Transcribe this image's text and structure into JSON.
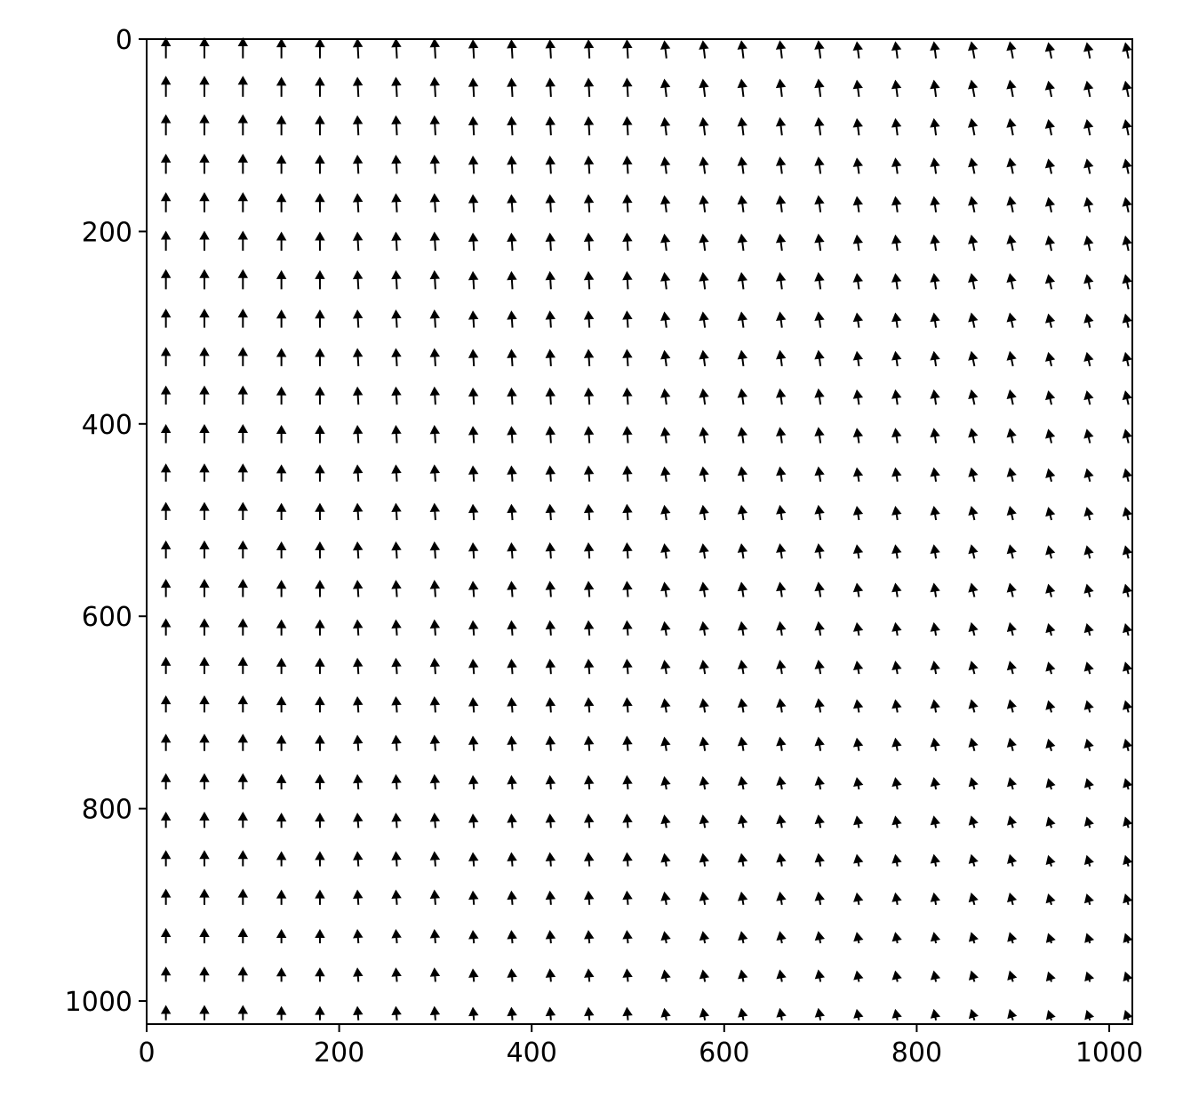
{
  "chart_data": {
    "type": "quiver",
    "x": [
      20,
      60,
      100,
      140,
      180,
      220,
      260,
      300,
      340,
      380,
      420,
      460,
      500,
      540,
      580,
      620,
      660,
      700,
      740,
      780,
      820,
      860,
      900,
      940,
      980,
      1020
    ],
    "y": [
      20,
      60,
      100,
      140,
      180,
      220,
      260,
      300,
      340,
      380,
      420,
      460,
      500,
      540,
      580,
      620,
      660,
      700,
      740,
      780,
      820,
      860,
      900,
      940,
      980,
      1020
    ],
    "u": [
      [
        0,
        0,
        0,
        0,
        0,
        -1,
        -1,
        -1,
        -1,
        -1,
        -1,
        -1,
        -1,
        -2,
        -2,
        -2,
        -2,
        -2,
        -2,
        -2,
        -2,
        -3,
        -3,
        -3,
        -3,
        -3
      ],
      [
        0,
        0,
        0,
        0,
        0,
        -1,
        -1,
        -1,
        -1,
        -1,
        -1,
        -1,
        -1,
        -2,
        -2,
        -2,
        -2,
        -2,
        -2,
        -2,
        -2,
        -3,
        -3,
        -3,
        -3,
        -3
      ],
      [
        0,
        0,
        0,
        0,
        0,
        -1,
        -1,
        -1,
        -1,
        -1,
        -1,
        -1,
        -1,
        -2,
        -2,
        -2,
        -2,
        -2,
        -2,
        -2,
        -2,
        -3,
        -3,
        -3,
        -3,
        -3
      ],
      [
        0,
        0,
        0,
        0,
        0,
        -1,
        -1,
        -1,
        -1,
        -1,
        -1,
        -1,
        -1,
        -2,
        -2,
        -2,
        -2,
        -2,
        -2,
        -2,
        -2,
        -3,
        -3,
        -3,
        -3,
        -3
      ],
      [
        0,
        0,
        0,
        0,
        0,
        -1,
        -1,
        -1,
        -1,
        -1,
        -1,
        -1,
        -1,
        -2,
        -2,
        -2,
        -2,
        -2,
        -2,
        -2,
        -2,
        -3,
        -3,
        -3,
        -3,
        -3
      ],
      [
        0,
        0,
        0,
        0,
        0,
        -1,
        -1,
        -1,
        -1,
        -1,
        -1,
        -1,
        -1,
        -2,
        -2,
        -2,
        -2,
        -2,
        -2,
        -2,
        -2,
        -3,
        -3,
        -3,
        -3,
        -3
      ],
      [
        0,
        0,
        0,
        0,
        0,
        -1,
        -1,
        -1,
        -1,
        -1,
        -1,
        -1,
        -1,
        -2,
        -2,
        -2,
        -2,
        -2,
        -2,
        -2,
        -2,
        -3,
        -3,
        -3,
        -3,
        -3
      ],
      [
        0,
        0,
        0,
        0,
        0,
        -1,
        -1,
        -1,
        -1,
        -1,
        -1,
        -1,
        -1,
        -2,
        -2,
        -2,
        -2,
        -2,
        -2,
        -2,
        -2,
        -3,
        -3,
        -3,
        -3,
        -3
      ],
      [
        0,
        0,
        0,
        0,
        0,
        -1,
        -1,
        -1,
        -1,
        -1,
        -1,
        -1,
        -1,
        -2,
        -2,
        -2,
        -2,
        -2,
        -2,
        -2,
        -2,
        -3,
        -3,
        -3,
        -3,
        -3
      ],
      [
        0,
        0,
        0,
        0,
        0,
        -1,
        -1,
        -1,
        -1,
        -1,
        -1,
        -1,
        -1,
        -2,
        -2,
        -2,
        -2,
        -2,
        -2,
        -2,
        -2,
        -3,
        -3,
        -3,
        -3,
        -3
      ],
      [
        0,
        0,
        0,
        0,
        0,
        -1,
        -1,
        -1,
        -1,
        -1,
        -1,
        -1,
        -1,
        -2,
        -2,
        -2,
        -2,
        -2,
        -2,
        -2,
        -2,
        -3,
        -3,
        -3,
        -3,
        -3
      ],
      [
        0,
        0,
        0,
        0,
        0,
        -1,
        -1,
        -1,
        -1,
        -1,
        -1,
        -1,
        -1,
        -2,
        -2,
        -2,
        -2,
        -2,
        -2,
        -2,
        -2,
        -3,
        -3,
        -3,
        -3,
        -3
      ],
      [
        0,
        0,
        0,
        0,
        0,
        -1,
        -1,
        -1,
        -1,
        -1,
        -1,
        -1,
        -1,
        -2,
        -2,
        -2,
        -2,
        -2,
        -2,
        -2,
        -2,
        -3,
        -3,
        -3,
        -3,
        -3
      ],
      [
        0,
        0,
        0,
        0,
        0,
        -1,
        -1,
        -1,
        -1,
        -1,
        -1,
        -1,
        -1,
        -2,
        -2,
        -2,
        -2,
        -2,
        -2,
        -2,
        -2,
        -3,
        -3,
        -3,
        -3,
        -3
      ],
      [
        0,
        0,
        0,
        0,
        0,
        -1,
        -1,
        -1,
        -1,
        -1,
        -1,
        -1,
        -1,
        -2,
        -2,
        -2,
        -2,
        -2,
        -2,
        -2,
        -2,
        -3,
        -3,
        -3,
        -3,
        -3
      ],
      [
        0,
        0,
        0,
        0,
        0,
        -1,
        -1,
        -1,
        -1,
        -1,
        -1,
        -1,
        -1,
        -2,
        -2,
        -2,
        -2,
        -2,
        -2,
        -2,
        -2,
        -3,
        -3,
        -3,
        -3,
        -3
      ],
      [
        0,
        0,
        0,
        0,
        0,
        -1,
        -1,
        -1,
        -1,
        -1,
        -1,
        -1,
        -1,
        -2,
        -2,
        -2,
        -2,
        -2,
        -2,
        -2,
        -2,
        -3,
        -3,
        -3,
        -3,
        -3
      ],
      [
        0,
        0,
        0,
        0,
        0,
        -1,
        -1,
        -1,
        -1,
        -1,
        -1,
        -1,
        -1,
        -2,
        -2,
        -2,
        -2,
        -2,
        -2,
        -2,
        -2,
        -3,
        -3,
        -3,
        -3,
        -3
      ],
      [
        0,
        0,
        0,
        0,
        0,
        -1,
        -1,
        -1,
        -1,
        -1,
        -1,
        -1,
        -1,
        -2,
        -2,
        -2,
        -2,
        -2,
        -2,
        -2,
        -2,
        -3,
        -3,
        -3,
        -3,
        -3
      ],
      [
        0,
        0,
        0,
        0,
        0,
        -1,
        -1,
        -1,
        -1,
        -1,
        -1,
        -1,
        -1,
        -2,
        -2,
        -2,
        -2,
        -2,
        -2,
        -2,
        -2,
        -3,
        -3,
        -3,
        -3,
        -3
      ],
      [
        0,
        0,
        0,
        0,
        0,
        -1,
        -1,
        -1,
        -1,
        -1,
        -1,
        -1,
        -1,
        -2,
        -2,
        -2,
        -2,
        -2,
        -2,
        -2,
        -2,
        -3,
        -3,
        -3,
        -3,
        -3
      ],
      [
        0,
        0,
        0,
        0,
        0,
        -1,
        -1,
        -1,
        -1,
        -1,
        -1,
        -1,
        -1,
        -2,
        -2,
        -2,
        -2,
        -2,
        -2,
        -2,
        -2,
        -3,
        -3,
        -3,
        -3,
        -3
      ],
      [
        0,
        0,
        0,
        0,
        0,
        -1,
        -1,
        -1,
        -1,
        -1,
        -1,
        -1,
        -1,
        -2,
        -2,
        -2,
        -2,
        -2,
        -2,
        -2,
        -2,
        -3,
        -3,
        -3,
        -3,
        -3
      ],
      [
        0,
        0,
        0,
        0,
        0,
        -1,
        -1,
        -1,
        -1,
        -1,
        -1,
        -1,
        -1,
        -2,
        -2,
        -2,
        -2,
        -2,
        -2,
        -2,
        -2,
        -3,
        -3,
        -3,
        -3,
        -3
      ],
      [
        0,
        0,
        0,
        0,
        0,
        -1,
        -1,
        -1,
        -1,
        -1,
        -1,
        -1,
        -1,
        -2,
        -2,
        -2,
        -2,
        -2,
        -2,
        -2,
        -2,
        -3,
        -3,
        -3,
        -3,
        -3
      ],
      [
        0,
        0,
        0,
        0,
        0,
        -1,
        -1,
        -1,
        -1,
        -1,
        -1,
        -1,
        -1,
        -2,
        -2,
        -2,
        -2,
        -2,
        -2,
        -2,
        -2,
        -3,
        -3,
        -3,
        -3,
        -3
      ]
    ],
    "v": [
      [
        20,
        20,
        20,
        19,
        19,
        19,
        19,
        19,
        18,
        18,
        18,
        18,
        18,
        17,
        17,
        17,
        17,
        17,
        16,
        16,
        16,
        16,
        16,
        15,
        15,
        15
      ],
      [
        20,
        20,
        20,
        19,
        19,
        19,
        19,
        19,
        18,
        18,
        18,
        18,
        18,
        17,
        17,
        17,
        17,
        17,
        16,
        16,
        16,
        16,
        16,
        15,
        15,
        15
      ],
      [
        20,
        20,
        20,
        19,
        19,
        19,
        19,
        19,
        18,
        18,
        18,
        18,
        18,
        17,
        17,
        17,
        17,
        17,
        16,
        16,
        16,
        16,
        16,
        15,
        15,
        15
      ],
      [
        19,
        19,
        19,
        18,
        18,
        18,
        18,
        18,
        17,
        17,
        17,
        17,
        17,
        16,
        16,
        16,
        16,
        16,
        15,
        15,
        15,
        15,
        15,
        14,
        14,
        14
      ],
      [
        19,
        19,
        19,
        18,
        18,
        18,
        18,
        18,
        17,
        17,
        17,
        17,
        17,
        16,
        16,
        16,
        16,
        16,
        15,
        15,
        15,
        15,
        15,
        14,
        14,
        14
      ],
      [
        19,
        19,
        19,
        18,
        18,
        18,
        18,
        18,
        17,
        17,
        17,
        17,
        17,
        16,
        16,
        16,
        16,
        16,
        15,
        15,
        15,
        15,
        15,
        14,
        14,
        14
      ],
      [
        19,
        19,
        19,
        18,
        18,
        18,
        18,
        18,
        17,
        17,
        17,
        17,
        17,
        16,
        16,
        16,
        16,
        16,
        15,
        15,
        15,
        15,
        15,
        14,
        14,
        14
      ],
      [
        18,
        18,
        18,
        17,
        17,
        17,
        17,
        17,
        16,
        16,
        16,
        16,
        16,
        15,
        15,
        15,
        15,
        15,
        14,
        14,
        14,
        14,
        14,
        13,
        13,
        13
      ],
      [
        18,
        18,
        18,
        17,
        17,
        17,
        17,
        17,
        16,
        16,
        16,
        16,
        16,
        15,
        15,
        15,
        15,
        15,
        14,
        14,
        14,
        14,
        14,
        13,
        13,
        13
      ],
      [
        18,
        18,
        18,
        17,
        17,
        17,
        17,
        17,
        16,
        16,
        16,
        16,
        16,
        15,
        15,
        15,
        15,
        15,
        14,
        14,
        14,
        14,
        14,
        13,
        13,
        13
      ],
      [
        18,
        18,
        18,
        17,
        17,
        17,
        17,
        17,
        16,
        16,
        16,
        16,
        16,
        15,
        15,
        15,
        15,
        15,
        14,
        14,
        14,
        14,
        14,
        13,
        13,
        13
      ],
      [
        17,
        17,
        17,
        16,
        16,
        16,
        16,
        16,
        15,
        15,
        15,
        15,
        15,
        14,
        14,
        14,
        14,
        14,
        13,
        13,
        13,
        13,
        13,
        12,
        12,
        12
      ],
      [
        17,
        17,
        17,
        16,
        16,
        16,
        16,
        16,
        15,
        15,
        15,
        15,
        15,
        14,
        14,
        14,
        14,
        14,
        13,
        13,
        13,
        13,
        13,
        12,
        12,
        12
      ],
      [
        17,
        17,
        17,
        16,
        16,
        16,
        16,
        16,
        15,
        15,
        15,
        15,
        15,
        14,
        14,
        14,
        14,
        14,
        13,
        13,
        13,
        13,
        13,
        12,
        12,
        12
      ],
      [
        17,
        17,
        17,
        16,
        16,
        16,
        16,
        16,
        15,
        15,
        15,
        15,
        15,
        14,
        14,
        14,
        14,
        14,
        13,
        13,
        13,
        13,
        13,
        12,
        12,
        12
      ],
      [
        16,
        16,
        16,
        15,
        15,
        15,
        15,
        15,
        14,
        14,
        14,
        14,
        14,
        13,
        13,
        13,
        13,
        13,
        12,
        12,
        12,
        12,
        12,
        11,
        11,
        11
      ],
      [
        16,
        16,
        16,
        15,
        15,
        15,
        15,
        15,
        14,
        14,
        14,
        14,
        14,
        13,
        13,
        13,
        13,
        13,
        12,
        12,
        12,
        12,
        12,
        11,
        11,
        11
      ],
      [
        16,
        16,
        16,
        15,
        15,
        15,
        15,
        15,
        14,
        14,
        14,
        14,
        14,
        13,
        13,
        13,
        13,
        13,
        12,
        12,
        12,
        12,
        12,
        11,
        11,
        11
      ],
      [
        16,
        16,
        16,
        15,
        15,
        15,
        15,
        15,
        14,
        14,
        14,
        14,
        14,
        13,
        13,
        13,
        13,
        13,
        12,
        12,
        12,
        12,
        12,
        11,
        11,
        11
      ],
      [
        15,
        15,
        15,
        14,
        14,
        14,
        14,
        14,
        13,
        13,
        13,
        13,
        13,
        12,
        12,
        12,
        12,
        12,
        11,
        11,
        11,
        11,
        11,
        10,
        10,
        10
      ],
      [
        15,
        15,
        15,
        14,
        14,
        14,
        14,
        14,
        13,
        13,
        13,
        13,
        13,
        12,
        12,
        12,
        12,
        12,
        11,
        11,
        11,
        11,
        11,
        10,
        10,
        10
      ],
      [
        15,
        15,
        15,
        14,
        14,
        14,
        14,
        14,
        13,
        13,
        13,
        13,
        13,
        12,
        12,
        12,
        12,
        12,
        11,
        11,
        11,
        11,
        11,
        10,
        10,
        10
      ],
      [
        15,
        15,
        15,
        14,
        14,
        14,
        14,
        14,
        13,
        13,
        13,
        13,
        13,
        12,
        12,
        12,
        12,
        12,
        11,
        11,
        11,
        11,
        11,
        10,
        10,
        10
      ],
      [
        14,
        14,
        14,
        13,
        13,
        13,
        13,
        13,
        12,
        12,
        12,
        12,
        12,
        11,
        11,
        11,
        11,
        11,
        10,
        10,
        10,
        10,
        10,
        9,
        9,
        9
      ],
      [
        14,
        14,
        14,
        13,
        13,
        13,
        13,
        13,
        12,
        12,
        12,
        12,
        12,
        11,
        11,
        11,
        11,
        11,
        10,
        10,
        10,
        10,
        10,
        9,
        9,
        9
      ],
      [
        14,
        14,
        14,
        13,
        13,
        13,
        13,
        13,
        12,
        12,
        12,
        12,
        12,
        11,
        11,
        11,
        11,
        11,
        10,
        10,
        10,
        10,
        10,
        9,
        9,
        9
      ]
    ],
    "color": "#000000",
    "xlim": [
      0,
      1024
    ],
    "ylim": [
      1024,
      0
    ],
    "xticks": [
      0,
      200,
      400,
      600,
      800,
      1000
    ],
    "yticks": [
      0,
      200,
      400,
      600,
      800,
      1000
    ]
  }
}
